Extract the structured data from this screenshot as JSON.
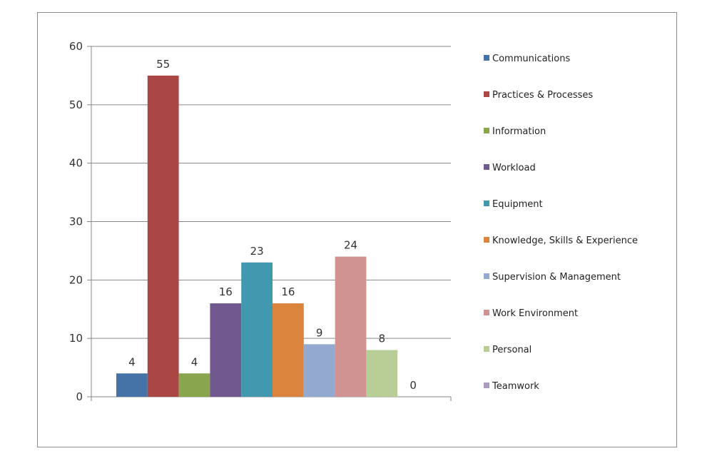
{
  "chart_data": {
    "type": "bar",
    "title": "",
    "xlabel": "",
    "ylabel": "",
    "ylim": [
      0,
      60
    ],
    "yticks": [
      0,
      10,
      20,
      30,
      40,
      50,
      60
    ],
    "grid": "horizontal",
    "legend_position": "right",
    "series": [
      {
        "name": "Communications",
        "value": 4,
        "color": "#4572A7"
      },
      {
        "name": "Practices & Processes",
        "value": 55,
        "color": "#AA4643"
      },
      {
        "name": "Information",
        "value": 4,
        "color": "#89A54E"
      },
      {
        "name": "Workload",
        "value": 16,
        "color": "#71588F"
      },
      {
        "name": "Equipment",
        "value": 23,
        "color": "#4198AF"
      },
      {
        "name": "Knowledge, Skills & Experience",
        "value": 16,
        "color": "#DB843D"
      },
      {
        "name": "Supervision & Management",
        "value": 9,
        "color": "#93A9CF"
      },
      {
        "name": "Work Environment",
        "value": 24,
        "color": "#D19392"
      },
      {
        "name": "Personal",
        "value": 8,
        "color": "#B9CD96"
      },
      {
        "name": "Teamwork",
        "value": 0,
        "color": "#A99BBD"
      }
    ]
  }
}
